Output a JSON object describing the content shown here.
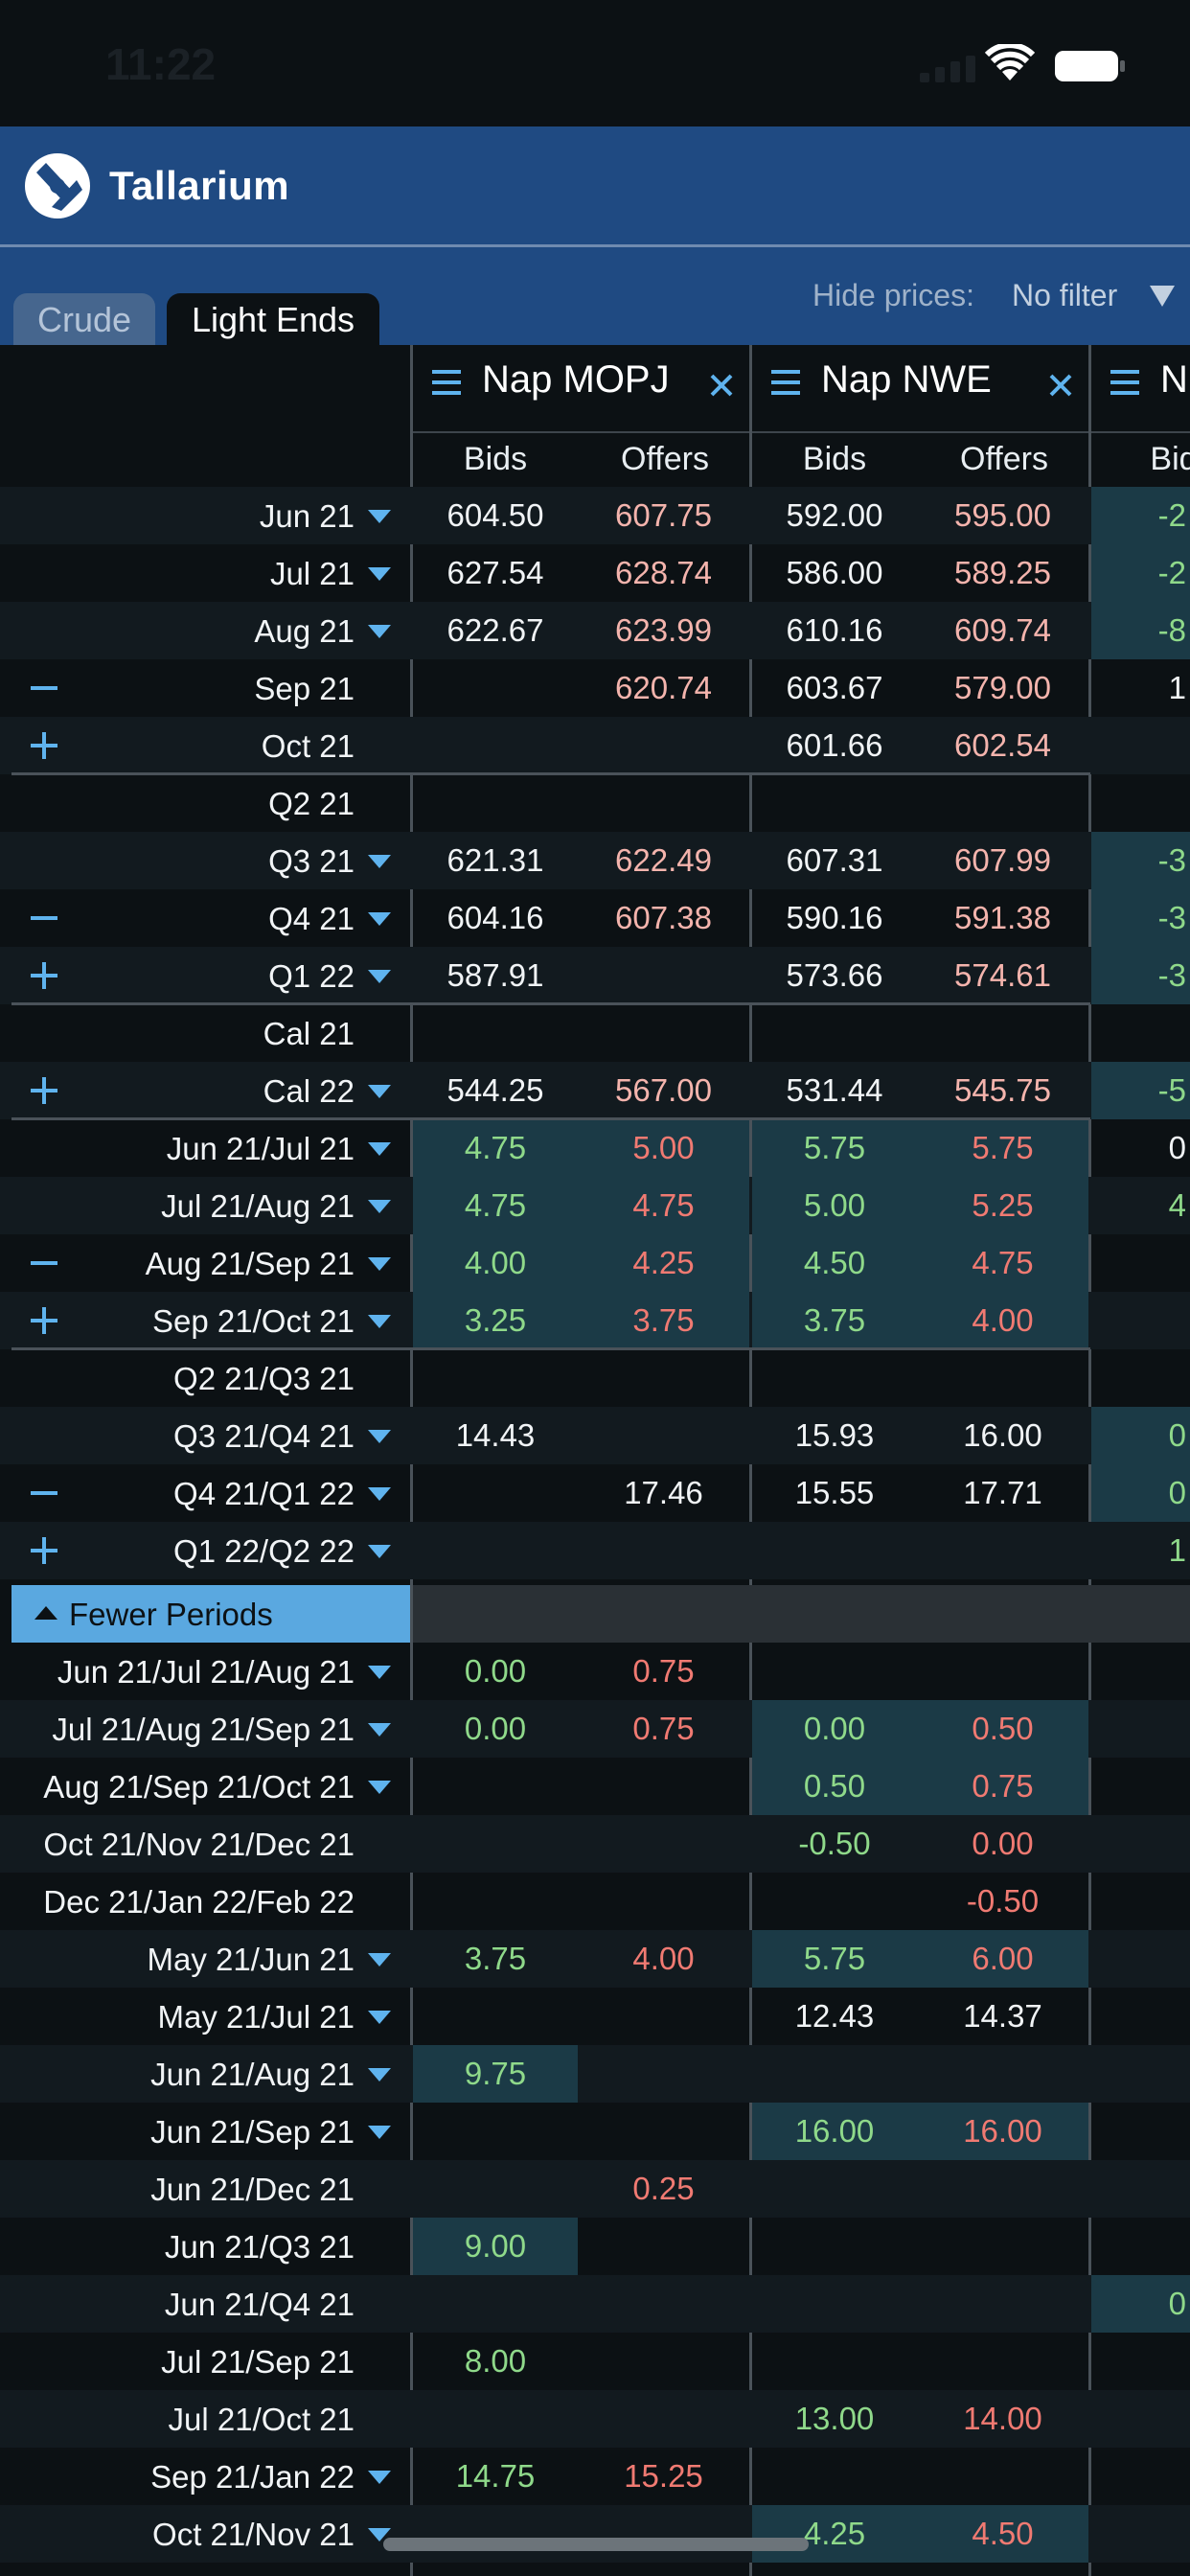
{
  "status": {
    "time": "11:22"
  },
  "header": {
    "logo_text": "Tallarium"
  },
  "tabs": [
    {
      "label": "Crude",
      "active": false
    },
    {
      "label": "Light Ends",
      "active": true
    }
  ],
  "filter": {
    "label": "Hide prices:",
    "value": "No filter"
  },
  "columns": [
    {
      "name": "Nap MOPJ",
      "bids_label": "Bids",
      "offers_label": "Offers"
    },
    {
      "name": "Nap NWE",
      "bids_label": "Bids",
      "offers_label": "Offers"
    },
    {
      "name": "N",
      "bids_label": "Bid",
      "offers_label": ""
    }
  ],
  "fewer_periods_label": "Fewer Periods",
  "colors": {
    "header_blue": "#1f4a82",
    "accent": "#5fb3ee",
    "bid_green": "#8fd98a",
    "offer_red": "#f07a72",
    "highlight": "#1b3a46"
  },
  "rows": [
    {
      "label": "Jun 21",
      "caret": true,
      "icon": "",
      "m_bid": "604.50",
      "m_off": "607.75",
      "n_bid": "592.00",
      "n_off": "595.00",
      "x": "-2"
    },
    {
      "label": "Jul 21",
      "caret": true,
      "icon": "",
      "m_bid": "627.54",
      "m_off": "628.74",
      "n_bid": "586.00",
      "n_off": "589.25",
      "x": "-2"
    },
    {
      "label": "Aug 21",
      "caret": true,
      "icon": "",
      "m_bid": "622.67",
      "m_off": "623.99",
      "n_bid": "610.16",
      "n_off": "609.74",
      "x": "-8"
    },
    {
      "label": "Sep 21",
      "caret": false,
      "icon": "minus",
      "m_bid": "",
      "m_off": "620.74",
      "n_bid": "603.67",
      "n_off": "579.00",
      "x": "1"
    },
    {
      "label": "Oct 21",
      "caret": false,
      "icon": "plus",
      "m_bid": "",
      "m_off": "",
      "n_bid": "601.66",
      "n_off": "602.54",
      "x": ""
    },
    {
      "label": "Q2 21",
      "caret": false,
      "icon": "",
      "m_bid": "",
      "m_off": "",
      "n_bid": "",
      "n_off": "",
      "x": ""
    },
    {
      "label": "Q3 21",
      "caret": true,
      "icon": "",
      "m_bid": "621.31",
      "m_off": "622.49",
      "n_bid": "607.31",
      "n_off": "607.99",
      "x": "-3"
    },
    {
      "label": "Q4 21",
      "caret": true,
      "icon": "minus",
      "m_bid": "604.16",
      "m_off": "607.38",
      "n_bid": "590.16",
      "n_off": "591.38",
      "x": "-3"
    },
    {
      "label": "Q1 22",
      "caret": true,
      "icon": "plus",
      "m_bid": "587.91",
      "m_off": "",
      "n_bid": "573.66",
      "n_off": "574.61",
      "x": "-3"
    },
    {
      "label": "Cal 21",
      "caret": false,
      "icon": "",
      "m_bid": "",
      "m_off": "",
      "n_bid": "",
      "n_off": "",
      "x": ""
    },
    {
      "label": "Cal 22",
      "caret": true,
      "icon": "plus",
      "m_bid": "544.25",
      "m_off": "567.00",
      "n_bid": "531.44",
      "n_off": "545.75",
      "x": "-5"
    },
    {
      "label": "Jun 21/Jul 21",
      "caret": true,
      "icon": "",
      "m_bid": "4.75",
      "m_off": "5.00",
      "n_bid": "5.75",
      "n_off": "5.75",
      "x": "0"
    },
    {
      "label": "Jul 21/Aug 21",
      "caret": true,
      "icon": "",
      "m_bid": "4.75",
      "m_off": "4.75",
      "n_bid": "5.00",
      "n_off": "5.25",
      "x": "4"
    },
    {
      "label": "Aug 21/Sep 21",
      "caret": true,
      "icon": "minus",
      "m_bid": "4.00",
      "m_off": "4.25",
      "n_bid": "4.50",
      "n_off": "4.75",
      "x": ""
    },
    {
      "label": "Sep 21/Oct 21",
      "caret": true,
      "icon": "plus",
      "m_bid": "3.25",
      "m_off": "3.75",
      "n_bid": "3.75",
      "n_off": "4.00",
      "x": ""
    },
    {
      "label": "Q2 21/Q3 21",
      "caret": false,
      "icon": "",
      "m_bid": "",
      "m_off": "",
      "n_bid": "",
      "n_off": "",
      "x": ""
    },
    {
      "label": "Q3 21/Q4 21",
      "caret": true,
      "icon": "",
      "m_bid": "14.43",
      "m_off": "",
      "n_bid": "15.93",
      "n_off": "16.00",
      "x": "0"
    },
    {
      "label": "Q4 21/Q1 22",
      "caret": true,
      "icon": "minus",
      "m_bid": "",
      "m_off": "17.46",
      "n_bid": "15.55",
      "n_off": "17.71",
      "x": "0"
    },
    {
      "label": "Q1 22/Q2 22",
      "caret": true,
      "icon": "plus",
      "m_bid": "",
      "m_off": "",
      "n_bid": "",
      "n_off": "",
      "x": "1"
    },
    {
      "label": "Jun 21/Jul 21/Aug 21",
      "caret": true,
      "icon": "",
      "m_bid": "0.00",
      "m_off": "0.75",
      "n_bid": "",
      "n_off": "",
      "x": ""
    },
    {
      "label": "Jul 21/Aug 21/Sep 21",
      "caret": true,
      "icon": "",
      "m_bid": "0.00",
      "m_off": "0.75",
      "n_bid": "0.00",
      "n_off": "0.50",
      "x": ""
    },
    {
      "label": "Aug 21/Sep 21/Oct 21",
      "caret": true,
      "icon": "",
      "m_bid": "",
      "m_off": "",
      "n_bid": "0.50",
      "n_off": "0.75",
      "x": ""
    },
    {
      "label": "Oct 21/Nov 21/Dec 21",
      "caret": false,
      "icon": "",
      "m_bid": "",
      "m_off": "",
      "n_bid": "-0.50",
      "n_off": "0.00",
      "x": ""
    },
    {
      "label": "Dec 21/Jan 22/Feb 22",
      "caret": false,
      "icon": "",
      "m_bid": "",
      "m_off": "",
      "n_bid": "",
      "n_off": "-0.50",
      "x": ""
    },
    {
      "label": "May 21/Jun 21",
      "caret": true,
      "icon": "",
      "m_bid": "3.75",
      "m_off": "4.00",
      "n_bid": "5.75",
      "n_off": "6.00",
      "x": ""
    },
    {
      "label": "May 21/Jul 21",
      "caret": true,
      "icon": "",
      "m_bid": "",
      "m_off": "",
      "n_bid": "12.43",
      "n_off": "14.37",
      "x": ""
    },
    {
      "label": "Jun 21/Aug 21",
      "caret": true,
      "icon": "",
      "m_bid": "9.75",
      "m_off": "",
      "n_bid": "",
      "n_off": "",
      "x": ""
    },
    {
      "label": "Jun 21/Sep 21",
      "caret": true,
      "icon": "",
      "m_bid": "",
      "m_off": "",
      "n_bid": "16.00",
      "n_off": "16.00",
      "x": ""
    },
    {
      "label": "Jun 21/Dec 21",
      "caret": false,
      "icon": "",
      "m_bid": "",
      "m_off": "0.25",
      "n_bid": "",
      "n_off": "",
      "x": ""
    },
    {
      "label": "Jun 21/Q3 21",
      "caret": false,
      "icon": "",
      "m_bid": "9.00",
      "m_off": "",
      "n_bid": "",
      "n_off": "",
      "x": ""
    },
    {
      "label": "Jun 21/Q4 21",
      "caret": false,
      "icon": "",
      "m_bid": "",
      "m_off": "",
      "n_bid": "",
      "n_off": "",
      "x": "0"
    },
    {
      "label": "Jul 21/Sep 21",
      "caret": false,
      "icon": "",
      "m_bid": "8.00",
      "m_off": "",
      "n_bid": "",
      "n_off": "",
      "x": ""
    },
    {
      "label": "Jul 21/Oct 21",
      "caret": false,
      "icon": "",
      "m_bid": "",
      "m_off": "",
      "n_bid": "13.00",
      "n_off": "14.00",
      "x": ""
    },
    {
      "label": "Sep 21/Jan 22",
      "caret": true,
      "icon": "",
      "m_bid": "14.75",
      "m_off": "15.25",
      "n_bid": "",
      "n_off": "",
      "x": ""
    },
    {
      "label": "Oct 21/Nov 21",
      "caret": true,
      "icon": "",
      "m_bid": "",
      "m_off": "",
      "n_bid": "4.25",
      "n_off": "4.50",
      "x": ""
    }
  ]
}
